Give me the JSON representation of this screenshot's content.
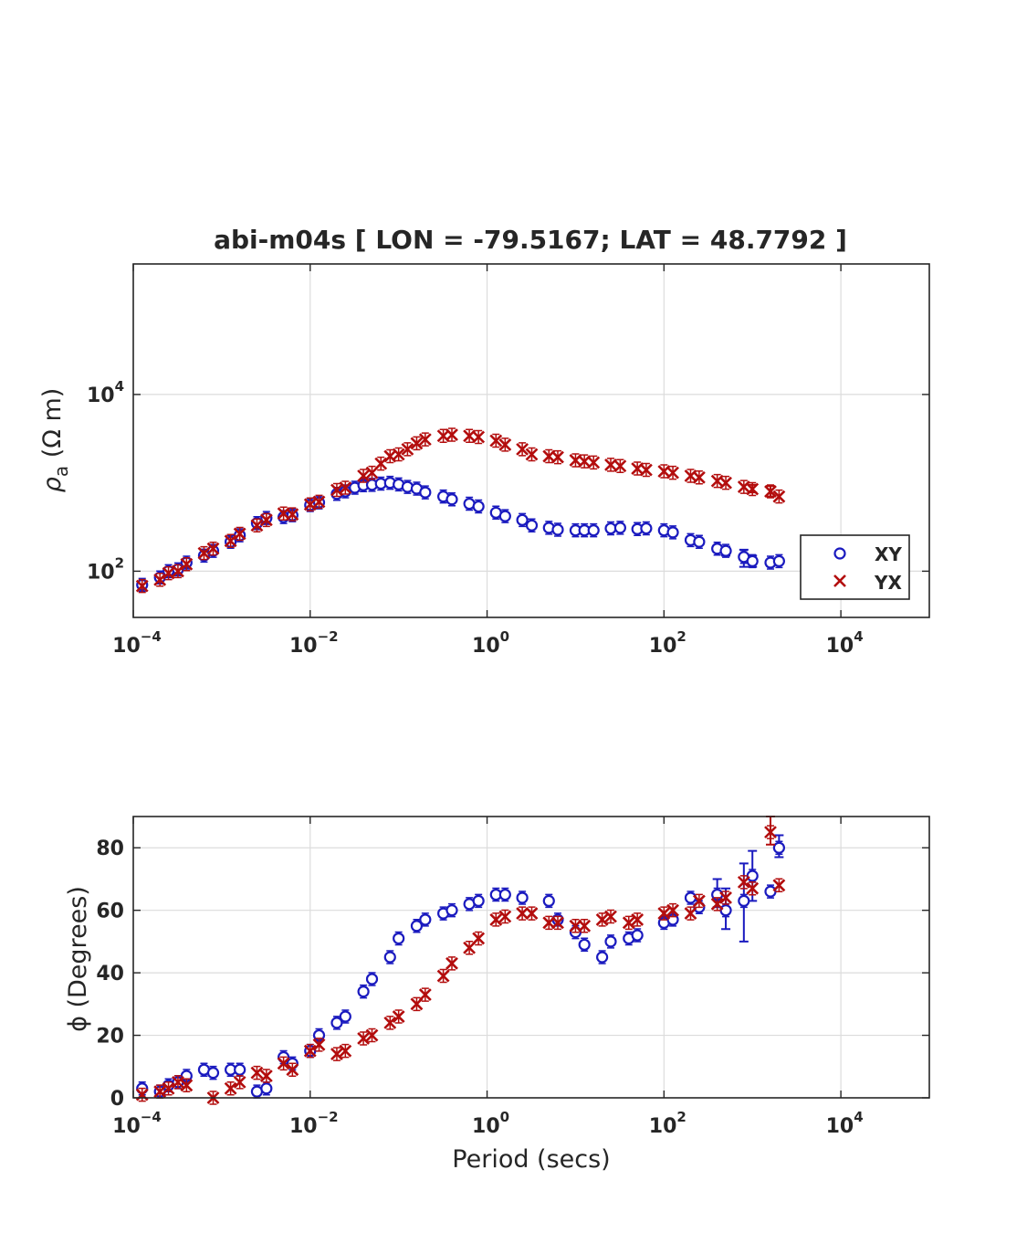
{
  "chart_data": [
    {
      "type": "scatter",
      "title": "abi-m04s [ LON = -79.5167; LAT = 48.7792 ]",
      "xlabel": "",
      "ylabel": "ρ_a (Ω m)",
      "ylabel_symbol": "ρ",
      "ylabel_sub": "a",
      "ylabel_unit": " (Ω m)",
      "xscale": "log",
      "yscale": "log",
      "xlim": [
        0.0001,
        100000
      ],
      "ylim": [
        30,
        300000
      ],
      "xticks": [
        0.0001,
        0.01,
        1,
        100,
        10000
      ],
      "xtick_base": "10",
      "xtick_exps": [
        "−4",
        "−2",
        "0",
        "2",
        "4"
      ],
      "yticks": [
        100,
        10000
      ],
      "ytick_base": "10",
      "ytick_exps": [
        "2",
        "4"
      ],
      "grid": true,
      "legend": {
        "position": "bottom-right",
        "entries": [
          "XY",
          "YX"
        ]
      },
      "series": [
        {
          "name": "XY",
          "marker": "circle",
          "color": "#1a1abf",
          "points": [
            [
              0.000126,
              70
            ],
            [
              0.0002,
              85
            ],
            [
              0.00025,
              100
            ],
            [
              0.00032,
              105
            ],
            [
              0.0004,
              125
            ],
            [
              0.00063,
              150
            ],
            [
              0.0008,
              170
            ],
            [
              0.00126,
              215
            ],
            [
              0.0016,
              255
            ],
            [
              0.0025,
              350
            ],
            [
              0.0032,
              400
            ],
            [
              0.005,
              410
            ],
            [
              0.0063,
              430
            ],
            [
              0.01,
              560
            ],
            [
              0.0126,
              600
            ],
            [
              0.02,
              750
            ],
            [
              0.025,
              800
            ],
            [
              0.032,
              880
            ],
            [
              0.04,
              940
            ],
            [
              0.05,
              950
            ],
            [
              0.063,
              980
            ],
            [
              0.08,
              1000
            ],
            [
              0.1,
              960
            ],
            [
              0.126,
              900
            ],
            [
              0.16,
              860
            ],
            [
              0.2,
              780
            ],
            [
              0.32,
              700
            ],
            [
              0.4,
              650
            ],
            [
              0.63,
              580
            ],
            [
              0.8,
              540
            ],
            [
              1.26,
              460
            ],
            [
              1.6,
              420
            ],
            [
              2.5,
              380
            ],
            [
              3.2,
              330
            ],
            [
              5,
              310
            ],
            [
              6.3,
              295
            ],
            [
              10,
              290
            ],
            [
              12.6,
              290
            ],
            [
              16,
              290
            ],
            [
              25,
              305
            ],
            [
              32,
              310
            ],
            [
              50,
              300
            ],
            [
              63,
              305
            ],
            [
              100,
              290
            ],
            [
              126,
              275
            ],
            [
              200,
              225
            ],
            [
              250,
              215
            ],
            [
              400,
              180
            ],
            [
              500,
              170
            ],
            [
              800,
              145
            ],
            [
              1000,
              130
            ],
            [
              1600,
              125
            ],
            [
              2000,
              130
            ]
          ],
          "errors": [
            [
              800,
              112,
              175
            ],
            [
              1000,
              112,
              150
            ],
            [
              500,
              150,
              190
            ]
          ]
        },
        {
          "name": "YX",
          "marker": "x",
          "color": "#b30d0d",
          "points": [
            [
              0.000126,
              68
            ],
            [
              0.0002,
              80
            ],
            [
              0.00025,
              95
            ],
            [
              0.00032,
              100
            ],
            [
              0.0004,
              120
            ],
            [
              0.00063,
              160
            ],
            [
              0.0008,
              180
            ],
            [
              0.00126,
              220
            ],
            [
              0.0016,
              265
            ],
            [
              0.0025,
              330
            ],
            [
              0.0032,
              380
            ],
            [
              0.005,
              450
            ],
            [
              0.0063,
              440
            ],
            [
              0.01,
              570
            ],
            [
              0.0126,
              610
            ],
            [
              0.02,
              830
            ],
            [
              0.025,
              880
            ],
            [
              0.04,
              1200
            ],
            [
              0.05,
              1300
            ],
            [
              0.063,
              1650
            ],
            [
              0.08,
              2000
            ],
            [
              0.1,
              2100
            ],
            [
              0.126,
              2400
            ],
            [
              0.16,
              2800
            ],
            [
              0.2,
              3100
            ],
            [
              0.32,
              3400
            ],
            [
              0.4,
              3500
            ],
            [
              0.63,
              3400
            ],
            [
              0.8,
              3300
            ],
            [
              1.26,
              3000
            ],
            [
              1.6,
              2700
            ],
            [
              2.5,
              2400
            ],
            [
              3.2,
              2100
            ],
            [
              5,
              2000
            ],
            [
              6.3,
              1950
            ],
            [
              10,
              1800
            ],
            [
              12.6,
              1750
            ],
            [
              16,
              1700
            ],
            [
              25,
              1600
            ],
            [
              32,
              1550
            ],
            [
              50,
              1450
            ],
            [
              63,
              1400
            ],
            [
              100,
              1350
            ],
            [
              126,
              1300
            ],
            [
              200,
              1200
            ],
            [
              250,
              1150
            ],
            [
              400,
              1050
            ],
            [
              500,
              1000
            ],
            [
              800,
              900
            ],
            [
              1000,
              850
            ],
            [
              1600,
              800
            ],
            [
              2000,
              700
            ]
          ],
          "errors": [
            [
              1000,
              780,
              950
            ],
            [
              1600,
              700,
              920
            ]
          ]
        }
      ]
    },
    {
      "type": "scatter",
      "title": "",
      "xlabel": "Period (secs)",
      "ylabel": "ϕ (Degrees)",
      "xscale": "log",
      "yscale": "linear",
      "xlim": [
        0.0001,
        100000
      ],
      "ylim": [
        0,
        90
      ],
      "xticks": [
        0.0001,
        0.01,
        1,
        100,
        10000
      ],
      "xtick_base": "10",
      "xtick_exps": [
        "−4",
        "−2",
        "0",
        "2",
        "4"
      ],
      "yticks": [
        0,
        20,
        40,
        60,
        80
      ],
      "yticklabels": [
        "0",
        "20",
        "40",
        "60",
        "80"
      ],
      "grid": true,
      "series": [
        {
          "name": "XY",
          "marker": "circle",
          "color": "#1a1abf",
          "points": [
            [
              0.000126,
              3
            ],
            [
              0.0002,
              2
            ],
            [
              0.00025,
              4
            ],
            [
              0.00032,
              5
            ],
            [
              0.0004,
              7
            ],
            [
              0.00063,
              9
            ],
            [
              0.0008,
              8
            ],
            [
              0.00126,
              9
            ],
            [
              0.0016,
              9
            ],
            [
              0.0025,
              2
            ],
            [
              0.0032,
              3
            ],
            [
              0.005,
              13
            ],
            [
              0.0063,
              11
            ],
            [
              0.01,
              15
            ],
            [
              0.0126,
              20
            ],
            [
              0.02,
              24
            ],
            [
              0.025,
              26
            ],
            [
              0.04,
              34
            ],
            [
              0.05,
              38
            ],
            [
              0.08,
              45
            ],
            [
              0.1,
              51
            ],
            [
              0.16,
              55
            ],
            [
              0.2,
              57
            ],
            [
              0.32,
              59
            ],
            [
              0.4,
              60
            ],
            [
              0.63,
              62
            ],
            [
              0.8,
              63
            ],
            [
              1.26,
              65
            ],
            [
              1.6,
              65
            ],
            [
              2.5,
              64
            ],
            [
              5,
              63
            ],
            [
              6.3,
              57
            ],
            [
              10,
              53
            ],
            [
              12.6,
              49
            ],
            [
              20,
              45
            ],
            [
              25,
              50
            ],
            [
              40,
              51
            ],
            [
              50,
              52
            ],
            [
              100,
              56
            ],
            [
              126,
              57
            ],
            [
              200,
              64
            ],
            [
              250,
              61
            ],
            [
              400,
              65
            ],
            [
              500,
              60
            ],
            [
              800,
              63
            ],
            [
              1000,
              71
            ],
            [
              1600,
              66
            ],
            [
              2000,
              80
            ]
          ],
          "errors": [
            [
              800,
              50,
              75
            ],
            [
              1000,
              63,
              79
            ],
            [
              500,
              54,
              67
            ],
            [
              400,
              61,
              70
            ],
            [
              2000,
              77,
              84
            ]
          ]
        },
        {
          "name": "YX",
          "marker": "x",
          "color": "#b30d0d",
          "points": [
            [
              0.000126,
              1
            ],
            [
              0.0002,
              2
            ],
            [
              0.00025,
              3
            ],
            [
              0.00032,
              5
            ],
            [
              0.0004,
              4
            ],
            [
              0.0008,
              0
            ],
            [
              0.00126,
              3
            ],
            [
              0.0016,
              5
            ],
            [
              0.0025,
              8
            ],
            [
              0.0032,
              7
            ],
            [
              0.005,
              11
            ],
            [
              0.0063,
              9
            ],
            [
              0.01,
              15
            ],
            [
              0.0126,
              17
            ],
            [
              0.02,
              14
            ],
            [
              0.025,
              15
            ],
            [
              0.04,
              19
            ],
            [
              0.05,
              20
            ],
            [
              0.08,
              24
            ],
            [
              0.1,
              26
            ],
            [
              0.16,
              30
            ],
            [
              0.2,
              33
            ],
            [
              0.32,
              39
            ],
            [
              0.4,
              43
            ],
            [
              0.63,
              48
            ],
            [
              0.8,
              51
            ],
            [
              1.26,
              57
            ],
            [
              1.6,
              58
            ],
            [
              2.5,
              59
            ],
            [
              3.2,
              59
            ],
            [
              5,
              56
            ],
            [
              6.3,
              56
            ],
            [
              10,
              55
            ],
            [
              12.6,
              55
            ],
            [
              20,
              57
            ],
            [
              25,
              58
            ],
            [
              40,
              56
            ],
            [
              50,
              57
            ],
            [
              100,
              59
            ],
            [
              126,
              60
            ],
            [
              200,
              59
            ],
            [
              250,
              63
            ],
            [
              400,
              62
            ],
            [
              500,
              64
            ],
            [
              800,
              69
            ],
            [
              1000,
              67
            ],
            [
              1600,
              85
            ],
            [
              2000,
              68
            ]
          ],
          "errors": [
            [
              1600,
              81,
              90
            ]
          ]
        }
      ]
    }
  ]
}
